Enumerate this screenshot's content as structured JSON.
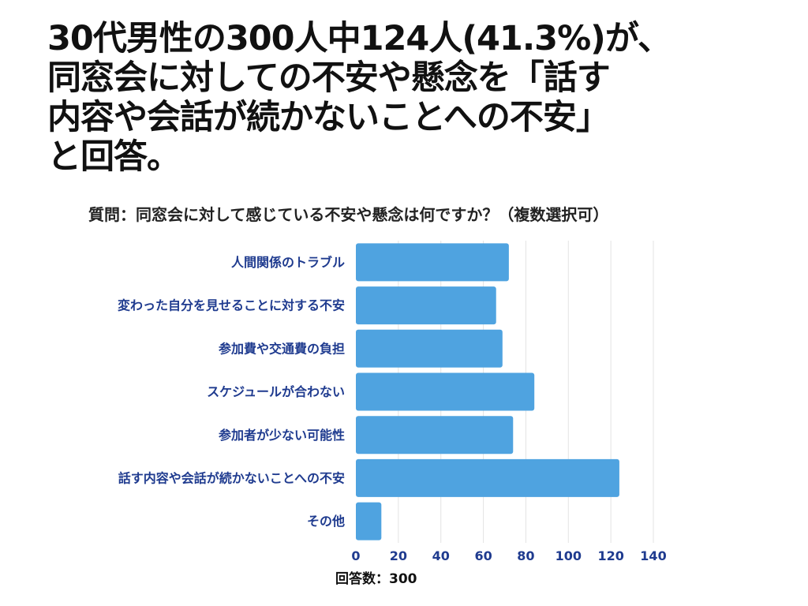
{
  "headline": "30代男性の300人中124人(41.3%)が、\n同窓会に対しての不安や懸念を「話す\n内容や会話が続かないことへの不安」\nと回答。",
  "chart_data": {
    "type": "bar",
    "orientation": "horizontal",
    "title": "質問：同窓会に対して感じている不安や懸念は何ですか？（複数選択可）",
    "categories": [
      "人間関係のトラブル",
      "変わった自分を見せることに対する不安",
      "参加費や交通費の負担",
      "スケジュールが合わない",
      "参加者が少ない可能性",
      "話す内容や会話が続かないことへの不安",
      "その他"
    ],
    "values": [
      72,
      66,
      69,
      84,
      74,
      124,
      12
    ],
    "xlim": [
      0,
      140
    ],
    "xticks": [
      0,
      20,
      40,
      60,
      80,
      100,
      120,
      140
    ],
    "grid": true,
    "legend": "none",
    "bar_color": "#4fa3e0",
    "tick_color": "#1f3b8f",
    "grid_color": "#e3e3e3",
    "footnote": "回答数：300"
  }
}
